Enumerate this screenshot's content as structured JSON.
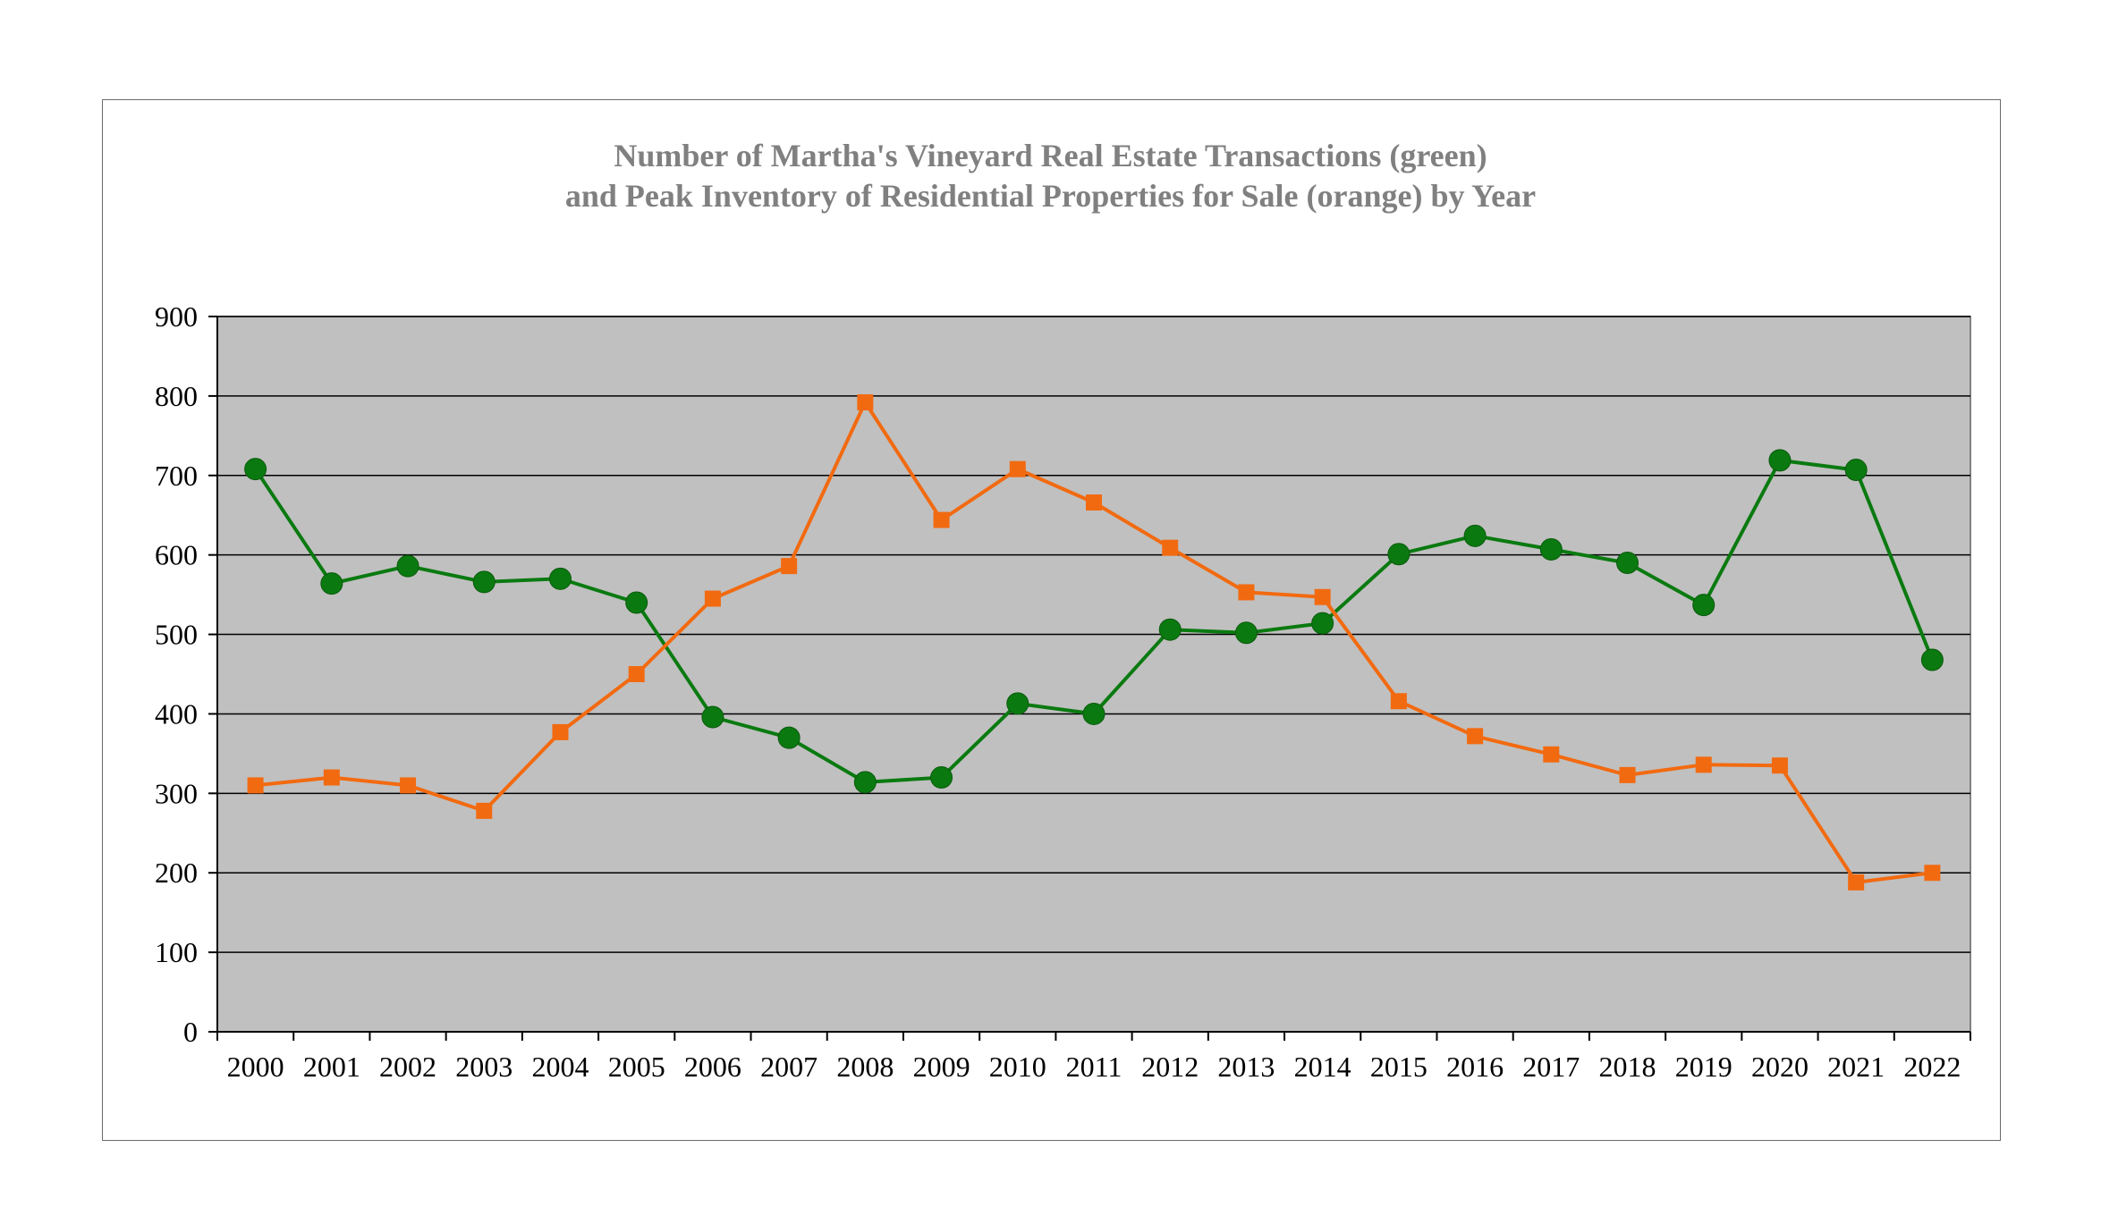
{
  "chart_data": {
    "type": "line",
    "title_lines": [
      "Number of Martha's Vineyard Real Estate Transactions (green)",
      "and Peak Inventory of Residential Properties for Sale (orange) by Year"
    ],
    "xlabel": "",
    "ylabel": "",
    "categories": [
      "2000",
      "2001",
      "2002",
      "2003",
      "2004",
      "2005",
      "2006",
      "2007",
      "2008",
      "2009",
      "2010",
      "2011",
      "2012",
      "2013",
      "2014",
      "2015",
      "2016",
      "2017",
      "2018",
      "2019",
      "2020",
      "2021",
      "2022"
    ],
    "ylim": [
      0,
      900
    ],
    "yticks": [
      0,
      100,
      200,
      300,
      400,
      500,
      600,
      700,
      800,
      900
    ],
    "grid": true,
    "legend": "none",
    "series": [
      {
        "color": "#0a7a10",
        "marker": "circle",
        "values": [
          708,
          564,
          586,
          566,
          570,
          540,
          396,
          370,
          314,
          320,
          413,
          400,
          506,
          502,
          514,
          601,
          624,
          607,
          590,
          537,
          719,
          707,
          468
        ]
      },
      {
        "color": "#f26a10",
        "marker": "square",
        "values": [
          310,
          320,
          310,
          278,
          377,
          450,
          545,
          586,
          792,
          644,
          708,
          666,
          609,
          553,
          547,
          416,
          372,
          349,
          323,
          336,
          335,
          188,
          200
        ]
      }
    ],
    "colors": {
      "plot_background": "#c0c0c0",
      "gridline": "#000000",
      "title": "#808080"
    }
  }
}
